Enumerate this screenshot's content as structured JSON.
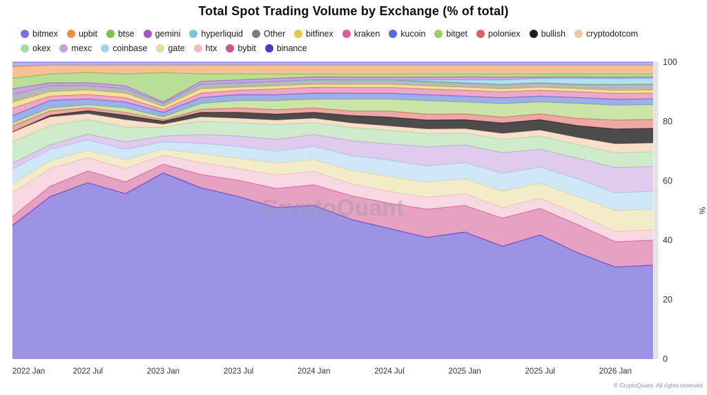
{
  "title": "Total Spot Trading Volume by Exchange (% of total)",
  "watermark": "CryptoQuant",
  "footer": "© CryptoQuant. All rights reserved",
  "y_axis": {
    "unit": "%",
    "ticks": [
      0,
      20,
      40,
      60,
      80,
      100
    ]
  },
  "x_axis": {
    "tick_labels": [
      "2022 Jan",
      "2022 Jul",
      "2023 Jan",
      "2023 Jul",
      "2024 Jan",
      "2024 Jul",
      "2025 Jan",
      "2025 Jul",
      "2026 Jan"
    ],
    "tick_indices": [
      0,
      2,
      4,
      6,
      8,
      10,
      12,
      14,
      16
    ]
  },
  "legend": {
    "rows": [
      [
        "bitmex",
        "upbit",
        "btse",
        "gemini",
        "hyperliquid",
        "Other",
        "bitfinex",
        "kraken",
        "kucoin",
        "bitget",
        "poloniex",
        "bullish",
        "cryptodotcom"
      ],
      [
        "okex",
        "mexc",
        "coinbase",
        "gate",
        "htx",
        "bybit",
        "binance"
      ]
    ]
  },
  "chart_data": {
    "type": "area",
    "stacked": true,
    "normalized_percent": true,
    "title": "Total Spot Trading Volume by Exchange (% of total)",
    "ylabel": "%",
    "ylim": [
      0,
      100
    ],
    "x": [
      "2022 Jan",
      "2022 Apr",
      "2022 Jul",
      "2022 Oct",
      "2023 Jan",
      "2023 Apr",
      "2023 Jul",
      "2023 Oct",
      "2024 Jan",
      "2024 Apr",
      "2024 Jul",
      "2024 Oct",
      "2025 Jan",
      "2025 Apr",
      "2025 Jul",
      "2025 Oct",
      "2026 Jan",
      "2026 Feb"
    ],
    "series": [
      {
        "name": "binance",
        "color": "#4a3bd0",
        "values": [
          45,
          55,
          60,
          56,
          63,
          58,
          55,
          51,
          52,
          47,
          44,
          41,
          43,
          38,
          42,
          36,
          31,
          32
        ]
      },
      {
        "name": "bybit",
        "color": "#d1568f",
        "values": [
          3,
          3.5,
          4,
          4,
          3,
          4.5,
          5.5,
          6.5,
          7,
          8,
          8.5,
          9.5,
          9,
          9.5,
          9,
          9.5,
          8.5,
          8.5
        ]
      },
      {
        "name": "htx",
        "color": "#f3b8ca",
        "values": [
          8,
          6,
          4.5,
          4.5,
          3,
          4,
          4,
          4.5,
          4.5,
          4,
          4,
          4,
          4,
          3.5,
          3.5,
          3.5,
          3.5,
          3.5
        ]
      },
      {
        "name": "gate",
        "color": "#e8dc9a",
        "values": [
          3,
          2.5,
          2.5,
          3,
          2,
          3,
          3.5,
          4,
          4,
          4.5,
          5,
          5,
          5,
          5.5,
          5,
          6,
          7,
          7
        ]
      },
      {
        "name": "coinbase",
        "color": "#a8d3ee",
        "values": [
          5,
          4,
          3.5,
          3.5,
          2.5,
          3.5,
          4,
          4,
          4.5,
          5,
          5.5,
          5.5,
          5.5,
          6,
          5.5,
          6,
          6,
          6
        ]
      },
      {
        "name": "mexc",
        "color": "#c79fe0",
        "values": [
          2,
          1.5,
          2,
          2.5,
          2,
          3,
          3.5,
          4,
          4,
          5,
          5.5,
          6.5,
          6,
          7,
          6,
          7,
          8.5,
          8.5
        ]
      },
      {
        "name": "okex",
        "color": "#a6dba0",
        "values": [
          7,
          6.5,
          5,
          5,
          3,
          4.5,
          4.5,
          5,
          4,
          4.5,
          4.5,
          4.5,
          4,
          4.5,
          4.5,
          4.5,
          5,
          5
        ]
      },
      {
        "name": "cryptodotcom",
        "color": "#f0c6a0",
        "values": [
          3.5,
          3,
          2,
          2.5,
          1,
          1.5,
          1.5,
          1.5,
          1.5,
          1.5,
          1.5,
          1.5,
          1.5,
          2,
          2,
          2.5,
          3,
          3
        ]
      },
      {
        "name": "bullish",
        "color": "#1f1f1f",
        "values": [
          0,
          0.5,
          1,
          1.5,
          1,
          1.5,
          2,
          2,
          2,
          2.5,
          3,
          3,
          3,
          3.5,
          3.5,
          4,
          5,
          5
        ]
      },
      {
        "name": "poloniex",
        "color": "#dd5f5f",
        "values": [
          2,
          1.5,
          1,
          1,
          0.5,
          1,
          1.5,
          1.5,
          1.5,
          1.5,
          2,
          2,
          2,
          2,
          2,
          2.5,
          3,
          3
        ]
      },
      {
        "name": "bitget",
        "color": "#9ed05e",
        "values": [
          1,
          1,
          1,
          1.5,
          1,
          2,
          2.5,
          3,
          3,
          4,
          4,
          4.5,
          4,
          4.5,
          4,
          5,
          5,
          5
        ]
      },
      {
        "name": "kucoin",
        "color": "#4f6cd8",
        "values": [
          2.5,
          2.5,
          2,
          2,
          1.5,
          2,
          2,
          2,
          2,
          2,
          2,
          2,
          2,
          2,
          2,
          2,
          2,
          2
        ]
      },
      {
        "name": "kraken",
        "color": "#df5e9a",
        "values": [
          2.5,
          1.5,
          1.5,
          1.5,
          1,
          1.5,
          1.5,
          2,
          2,
          2,
          2,
          2,
          2,
          2,
          2,
          2,
          2,
          2
        ]
      },
      {
        "name": "bitfinex",
        "color": "#e3c84b",
        "values": [
          2,
          1.5,
          1.5,
          1.5,
          1,
          1.5,
          1,
          1,
          1,
          1,
          1,
          1,
          1,
          1,
          1,
          1,
          1,
          1
        ]
      },
      {
        "name": "Other",
        "color": "#7d7d7d",
        "values": [
          2.5,
          2,
          1.5,
          1.5,
          1,
          1.5,
          1.5,
          1.5,
          1.5,
          1.5,
          1.5,
          1.5,
          1.5,
          1.5,
          1.5,
          1.5,
          2,
          2
        ]
      },
      {
        "name": "hyperliquid",
        "color": "#74c6e4",
        "values": [
          0,
          0,
          0,
          0,
          0,
          0,
          0,
          0,
          0,
          0,
          0,
          0.5,
          1,
          1.5,
          1.5,
          2,
          2,
          2
        ]
      },
      {
        "name": "gemini",
        "color": "#a855cc",
        "values": [
          2,
          1,
          1,
          1,
          0.5,
          1,
          1,
          1,
          1,
          1,
          1,
          1,
          1,
          1,
          0.5,
          0.5,
          0.5,
          0.5
        ]
      },
      {
        "name": "btse",
        "color": "#7fc241",
        "values": [
          3.5,
          3,
          3.5,
          4,
          10,
          2.5,
          2,
          1.5,
          1,
          1,
          1,
          1,
          1,
          1,
          1,
          1,
          1,
          1
        ]
      },
      {
        "name": "upbit",
        "color": "#ef8f3e",
        "values": [
          4,
          3,
          2.5,
          3,
          2.5,
          3,
          3,
          3,
          3,
          3,
          3,
          3,
          3,
          3,
          3,
          3,
          3,
          3
        ]
      },
      {
        "name": "bitmex",
        "color": "#7d6ee4",
        "values": [
          1.5,
          1,
          1,
          1,
          1,
          1,
          1,
          1,
          1,
          1,
          1,
          1,
          1,
          1,
          1,
          1,
          1,
          1
        ]
      }
    ]
  }
}
